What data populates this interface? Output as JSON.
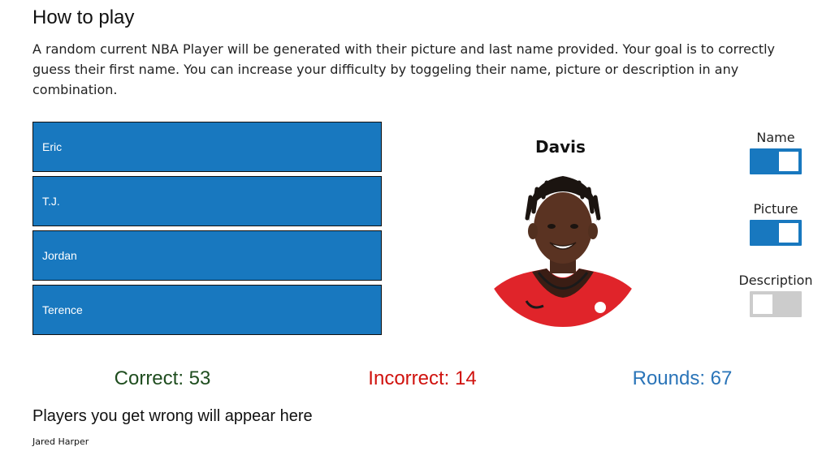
{
  "instructions": {
    "title": "How to play",
    "text": "A random current NBA Player will be generated with their picture and last name provided. Your goal is to correctly guess their first name. You can increase your difficulty by toggeling their name, picture or description in any combination."
  },
  "choices": [
    "Eric",
    "T.J.",
    "Jordan",
    "Terence"
  ],
  "player": {
    "last_name": "Davis",
    "portrait_icon": "player-headshot",
    "jersey_color": "#e0242a"
  },
  "toggles": {
    "name": {
      "label": "Name",
      "state": "on"
    },
    "picture": {
      "label": "Picture",
      "state": "on"
    },
    "description": {
      "label": "Description",
      "state": "off"
    }
  },
  "score": {
    "correct": {
      "text": "Correct: 53",
      "color": "#1f4d1f"
    },
    "incorrect": {
      "text": "Incorrect: 14",
      "color": "#d0120e"
    },
    "rounds": {
      "text": "Rounds: 67",
      "color": "#2a74b8"
    }
  },
  "wrong_players": {
    "heading": "Players you get wrong will appear here",
    "list": [
      "Jared Harper"
    ]
  },
  "colors": {
    "choice_bg": "#1878bf",
    "toggle_on": "#1878bf",
    "toggle_off": "#cccccc"
  }
}
